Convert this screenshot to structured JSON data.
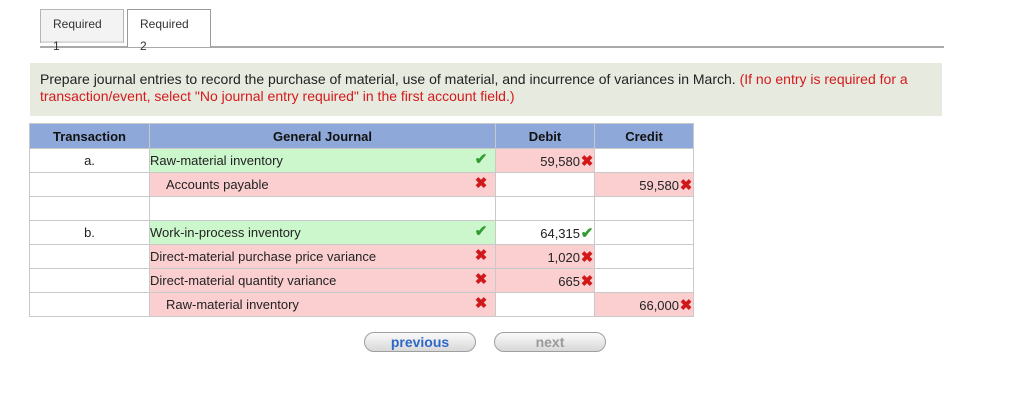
{
  "tabs": [
    {
      "label": "Required 1"
    },
    {
      "label": "Required 2"
    }
  ],
  "instructions": {
    "text": "Prepare journal entries to record the purchase of material, use of material, and incurrence of variances in March.",
    "note": "(If no entry is required for a transaction/event, select \"No journal entry required\" in the first account field.)"
  },
  "table": {
    "headers": {
      "transaction": "Transaction",
      "journal": "General Journal",
      "debit": "Debit",
      "credit": "Credit"
    },
    "rows": [
      {
        "tx": "a.",
        "account": "Raw-material inventory",
        "status": "check",
        "debit": "59,580",
        "debit_mark": "x",
        "credit": "",
        "credit_mark": ""
      },
      {
        "tx": "",
        "account": "Accounts payable",
        "status": "x",
        "debit": "",
        "debit_mark": "",
        "credit": "59,580",
        "credit_mark": "x"
      },
      {
        "tx": "",
        "account": "",
        "status": "",
        "debit": "",
        "debit_mark": "",
        "credit": "",
        "credit_mark": ""
      },
      {
        "tx": "b.",
        "account": "Work-in-process inventory",
        "status": "check",
        "debit": "64,315",
        "debit_mark": "check",
        "credit": "",
        "credit_mark": ""
      },
      {
        "tx": "",
        "account": "Direct-material purchase price variance",
        "status": "x",
        "debit": "1,020",
        "debit_mark": "x",
        "credit": "",
        "credit_mark": ""
      },
      {
        "tx": "",
        "account": "Direct-material quantity variance",
        "status": "x",
        "debit": "665",
        "debit_mark": "x",
        "credit": "",
        "credit_mark": ""
      },
      {
        "tx": "",
        "account": "Raw-material inventory",
        "status": "x",
        "debit": "",
        "debit_mark": "",
        "credit": "66,000",
        "credit_mark": "x"
      }
    ]
  },
  "marks": {
    "check": "✔",
    "x": "✖"
  },
  "buttons": {
    "previous": "previous",
    "next": "next"
  }
}
